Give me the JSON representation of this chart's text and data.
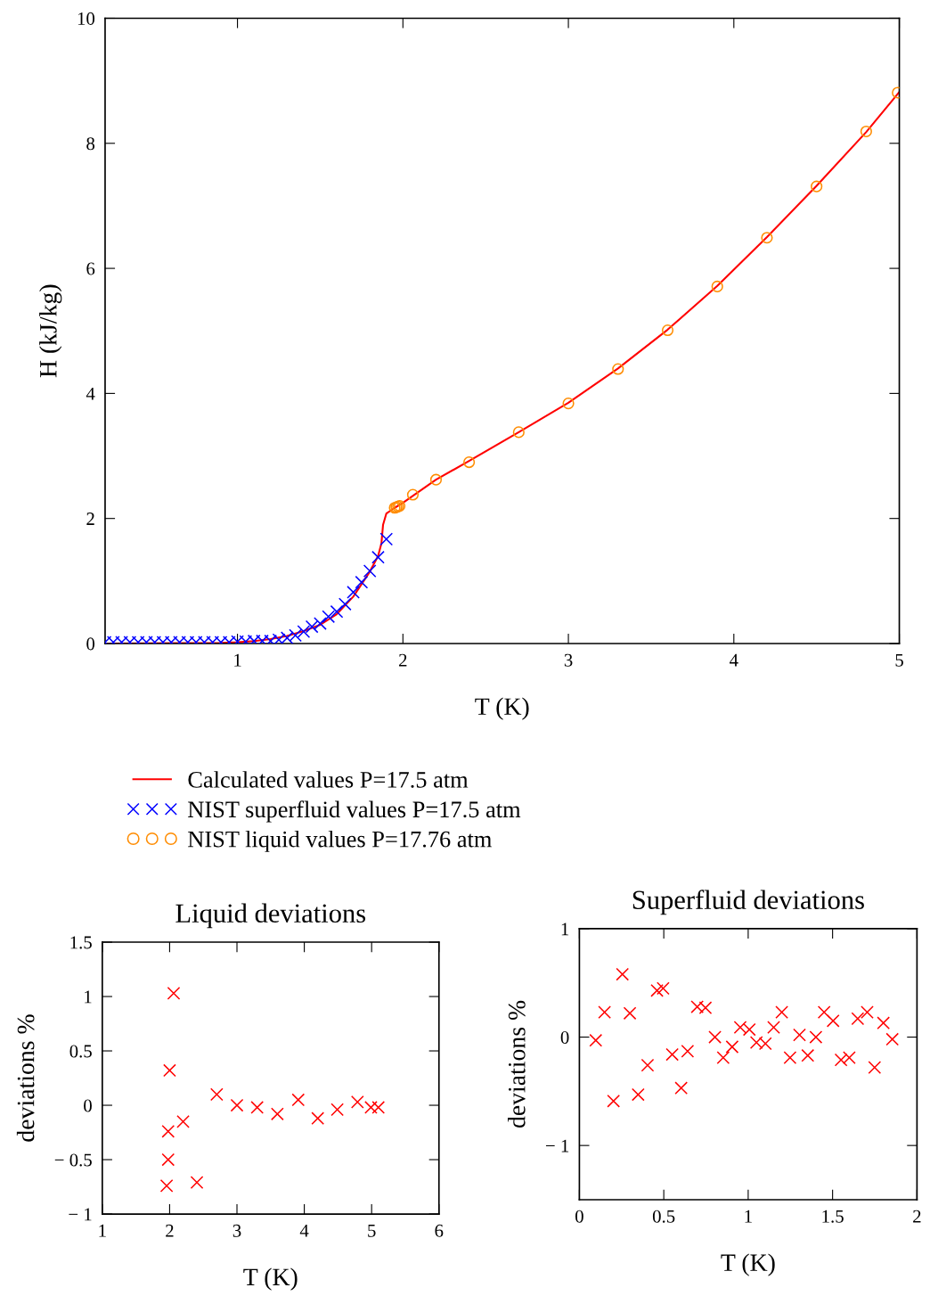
{
  "chart_data": [
    {
      "type": "line",
      "xlabel": "T (K)",
      "ylabel": "H (kJ/kg)",
      "xlim": [
        0.2,
        5
      ],
      "ylim": [
        0,
        10
      ],
      "xticks": [
        1,
        2,
        3,
        4,
        5
      ],
      "yticks": [
        0,
        2,
        4,
        6,
        8,
        10
      ],
      "grid": false,
      "legend": "bottom",
      "series": [
        {
          "name": "Calculated values P=17.5 atm",
          "type": "line",
          "color": "#ff0000",
          "marker": "none",
          "line_style": "solid",
          "x": [
            0.2,
            0.9,
            1.0,
            1.1,
            1.2,
            1.3,
            1.4,
            1.5,
            1.6,
            1.7,
            1.8,
            1.85,
            1.87,
            1.88,
            1.9,
            1.95,
            2.0,
            2.2,
            2.4,
            2.7,
            3.0,
            3.3,
            3.6,
            3.9,
            4.2,
            4.5,
            4.8,
            5.0
          ],
          "values": [
            0,
            0.01,
            0.02,
            0.04,
            0.07,
            0.12,
            0.2,
            0.3,
            0.47,
            0.75,
            1.15,
            1.4,
            1.6,
            1.9,
            2.08,
            2.17,
            2.25,
            2.62,
            2.92,
            3.38,
            3.85,
            4.4,
            5.02,
            5.72,
            6.5,
            7.32,
            8.18,
            8.82
          ]
        },
        {
          "name": "NIST superfluid values P=17.5 atm",
          "type": "scatter",
          "color": "#0000ff",
          "marker": "cross",
          "x": [
            0.2,
            0.25,
            0.3,
            0.35,
            0.4,
            0.45,
            0.5,
            0.55,
            0.6,
            0.65,
            0.7,
            0.75,
            0.8,
            0.85,
            0.9,
            0.95,
            1.0,
            1.05,
            1.1,
            1.15,
            1.2,
            1.25,
            1.3,
            1.35,
            1.4,
            1.45,
            1.5,
            1.55,
            1.6,
            1.65,
            1.7,
            1.75,
            1.8,
            1.85,
            1.9
          ],
          "values": [
            0.02,
            0.02,
            0.02,
            0.02,
            0.02,
            0.02,
            0.02,
            0.02,
            0.02,
            0.02,
            0.02,
            0.02,
            0.02,
            0.02,
            0.02,
            0.02,
            0.03,
            0.03,
            0.04,
            0.04,
            0.04,
            0.06,
            0.09,
            0.13,
            0.19,
            0.27,
            0.32,
            0.43,
            0.51,
            0.63,
            0.82,
            0.98,
            1.16,
            1.38,
            1.67
          ]
        },
        {
          "name": "NIST liquid values P=17.76 atm",
          "type": "scatter",
          "color": "#ff8c00",
          "marker": "circle",
          "x": [
            1.95,
            1.96,
            1.97,
            1.98,
            2.06,
            2.2,
            2.4,
            2.7,
            3.0,
            3.3,
            3.6,
            3.9,
            4.2,
            4.5,
            4.8,
            4.99
          ],
          "values": [
            2.17,
            2.18,
            2.19,
            2.2,
            2.38,
            2.62,
            2.9,
            3.38,
            3.84,
            4.39,
            5.01,
            5.71,
            6.49,
            7.31,
            8.19,
            8.81
          ]
        }
      ]
    },
    {
      "type": "scatter",
      "title": "Liquid deviations",
      "xlabel": "T (K)",
      "ylabel": "deviations %",
      "xlim": [
        1,
        6
      ],
      "ylim": [
        -1,
        1.5
      ],
      "xticks": [
        1,
        2,
        3,
        4,
        5,
        6
      ],
      "yticks": [
        -1,
        -0.5,
        0,
        0.5,
        1,
        1.5
      ],
      "grid": false,
      "marker": "cross",
      "series": [
        {
          "color": "#ff0000",
          "x": [
            1.956,
            1.978,
            1.978,
            2.0,
            2.06,
            2.2,
            2.405,
            2.7,
            3.0,
            3.3,
            3.6,
            3.91,
            4.2,
            4.49,
            4.79,
            4.99,
            5.1
          ],
          "values": [
            -0.74,
            -0.5,
            -0.24,
            0.32,
            1.03,
            -0.15,
            -0.71,
            0.1,
            0.0,
            -0.02,
            -0.08,
            0.05,
            -0.12,
            -0.04,
            0.03,
            -0.02,
            -0.02
          ]
        }
      ]
    },
    {
      "type": "scatter",
      "title": "Superfluid deviations",
      "xlabel": "T (K)",
      "ylabel": "deviations %",
      "xlim": [
        0,
        2
      ],
      "ylim": [
        -1.5,
        1
      ],
      "xticks": [
        0,
        0.5,
        1,
        1.5,
        2
      ],
      "yticks": [
        -1,
        0,
        1
      ],
      "grid": false,
      "marker": "cross",
      "series": [
        {
          "color": "#ff0000",
          "x": [
            0.097,
            0.149,
            0.202,
            0.255,
            0.299,
            0.348,
            0.404,
            0.46,
            0.496,
            0.55,
            0.603,
            0.641,
            0.698,
            0.747,
            0.803,
            0.852,
            0.905,
            0.953,
            1.007,
            1.049,
            1.102,
            1.151,
            1.199,
            1.248,
            1.304,
            1.353,
            1.401,
            1.45,
            1.503,
            1.55,
            1.599,
            1.649,
            1.705,
            1.749,
            1.801,
            1.854
          ],
          "values": [
            -0.03,
            0.23,
            -0.59,
            0.58,
            0.22,
            -0.53,
            -0.26,
            0.43,
            0.45,
            -0.16,
            -0.47,
            -0.13,
            0.28,
            0.27,
            0.0,
            -0.19,
            -0.09,
            0.09,
            0.07,
            -0.05,
            -0.06,
            0.09,
            0.23,
            -0.19,
            0.02,
            -0.17,
            0.0,
            0.23,
            0.15,
            -0.21,
            -0.19,
            0.17,
            0.23,
            -0.28,
            0.13,
            -0.02
          ]
        }
      ]
    }
  ]
}
